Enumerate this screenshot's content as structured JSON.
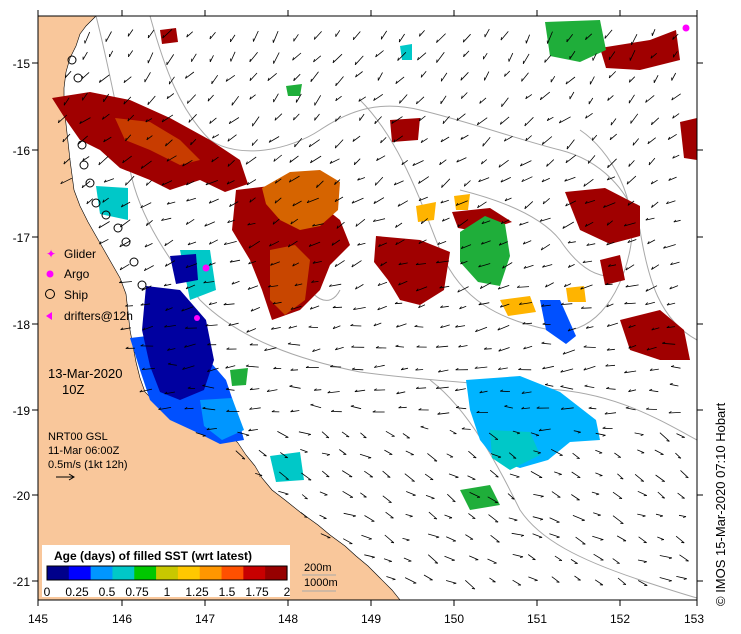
{
  "map": {
    "lon_ticks": [
      "145",
      "146",
      "147",
      "148",
      "149",
      "150",
      "151",
      "152",
      "153"
    ],
    "lat_ticks": [
      "-15",
      "-16",
      "-17",
      "-18",
      "-19",
      "-20",
      "-21"
    ]
  },
  "legend": {
    "glider": "Glider",
    "argo": "Argo",
    "ship": "Ship",
    "drifters": "drifters@12h"
  },
  "date": {
    "line1": "13-Mar-2020",
    "line2": "10Z"
  },
  "info": {
    "line1": "NRT00 GSL",
    "line2": "11-Mar 06:00Z",
    "line3": "0.5m/s (1kt 12h)"
  },
  "colorbar": {
    "title": "Age (days) of filled SST (wrt latest)",
    "ticks": [
      "0",
      "0.25",
      "0.5",
      "0.75",
      "1",
      "1.25",
      "1.5",
      "1.75",
      "2"
    ],
    "colors": [
      "#00008b",
      "#0000ff",
      "#0096ff",
      "#00c8c8",
      "#00c800",
      "#c8c800",
      "#ffc800",
      "#ff9600",
      "#ff5000",
      "#c80000",
      "#960000"
    ]
  },
  "isobaths": {
    "d200": "200m",
    "d1000": "1000m"
  },
  "credit": "© IMOS 15-Mar-2020 07:10 Hobart"
}
